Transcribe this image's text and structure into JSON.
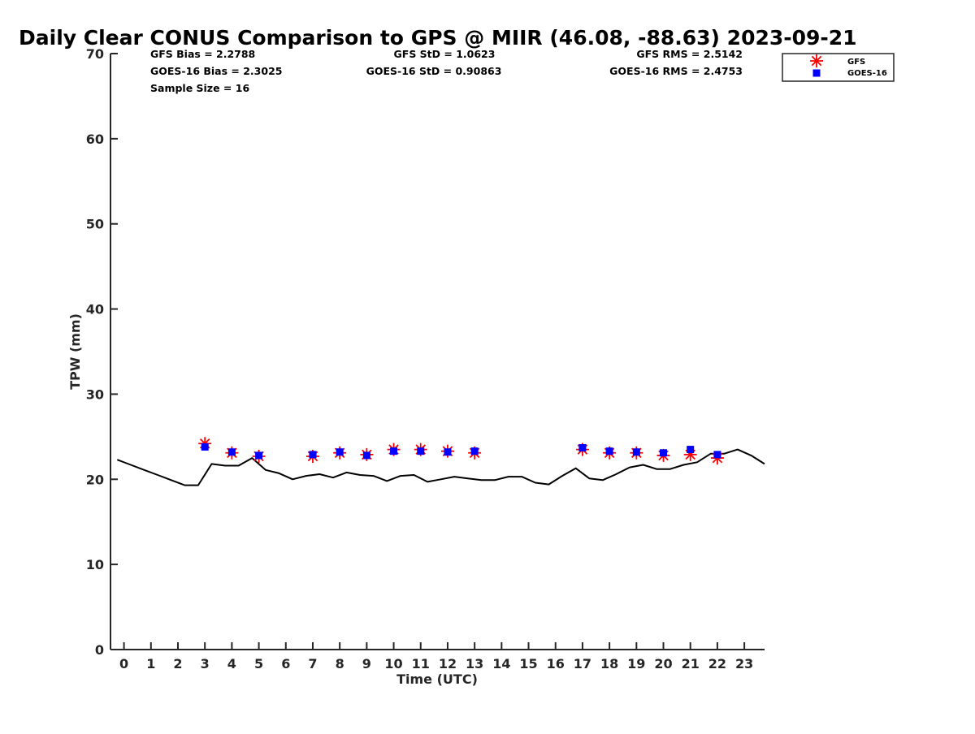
{
  "chart_data": {
    "type": "scatter",
    "title": "Daily Clear CONUS Comparison to GPS @ MIIR (46.08, -88.63) 2023-09-21",
    "xlabel": "Time (UTC)",
    "ylabel": "TPW (mm)",
    "xlim": [
      -0.5,
      23.75
    ],
    "ylim": [
      0,
      70
    ],
    "x_ticks": [
      0,
      1,
      2,
      3,
      4,
      5,
      6,
      7,
      8,
      9,
      10,
      11,
      12,
      13,
      14,
      15,
      16,
      17,
      18,
      19,
      20,
      21,
      22,
      23
    ],
    "y_ticks": [
      0,
      10,
      20,
      30,
      40,
      50,
      60,
      70
    ],
    "grid": false,
    "legend_position": "top-right",
    "colors": {
      "gfs": "#ff0000",
      "goes16": "#0000ff",
      "gps": "#000000",
      "axis": "#262626"
    },
    "stats": {
      "gfs_bias": "GFS Bias = 2.2788",
      "goes_bias": "GOES-16 Bias = 2.3025",
      "sample_size": "Sample Size = 16",
      "gfs_std": "GFS StD = 1.0623",
      "goes_std": "GOES-16 StD = 0.90863",
      "gfs_rms": "GFS RMS = 2.5142",
      "goes_rms": "GOES-16 RMS = 2.4753"
    },
    "series": [
      {
        "name": "GFS",
        "marker": "asterisk",
        "x": [
          3,
          4,
          5,
          7,
          8,
          9,
          10,
          11,
          12,
          13,
          17,
          18,
          19,
          20,
          21,
          22
        ],
        "y": [
          24.2,
          23.1,
          22.7,
          22.7,
          23.1,
          22.9,
          23.5,
          23.5,
          23.3,
          23.1,
          23.5,
          23.1,
          23.1,
          22.8,
          22.9,
          22.5
        ]
      },
      {
        "name": "GOES-16",
        "marker": "square",
        "x": [
          3,
          4,
          5,
          7,
          8,
          9,
          10,
          11,
          12,
          13,
          17,
          18,
          19,
          20,
          21,
          22
        ],
        "y": [
          23.8,
          23.2,
          22.8,
          22.9,
          23.2,
          22.8,
          23.3,
          23.3,
          23.2,
          23.3,
          23.7,
          23.3,
          23.2,
          23.1,
          23.5,
          22.9
        ]
      },
      {
        "marker": "line",
        "x": [
          -0.25,
          0.25,
          0.75,
          1.25,
          1.75,
          2.25,
          2.75,
          3.25,
          3.75,
          4.25,
          4.75,
          5.25,
          5.75,
          6.25,
          6.75,
          7.25,
          7.75,
          8.25,
          8.75,
          9.25,
          9.75,
          10.25,
          10.75,
          11.25,
          11.75,
          12.25,
          12.75,
          13.25,
          13.75,
          14.25,
          14.75,
          15.25,
          15.75,
          16.25,
          16.75,
          17.25,
          17.75,
          18.25,
          18.75,
          19.25,
          19.75,
          20.25,
          20.75,
          21.25,
          21.75,
          22.25,
          22.75,
          23.25,
          23.75
        ],
        "y": [
          22.3,
          21.7,
          21.1,
          20.5,
          19.9,
          19.3,
          19.3,
          21.8,
          21.6,
          21.6,
          22.5,
          21.1,
          20.7,
          20.0,
          20.4,
          20.6,
          20.2,
          20.8,
          20.5,
          20.4,
          19.8,
          20.4,
          20.5,
          19.7,
          20.0,
          20.3,
          20.1,
          19.9,
          19.9,
          20.3,
          20.3,
          19.6,
          19.4,
          20.4,
          21.3,
          20.1,
          19.9,
          20.6,
          21.4,
          21.7,
          21.2,
          21.2,
          21.7,
          22.0,
          23.0,
          23.0,
          23.5,
          22.8,
          21.8
        ]
      }
    ]
  }
}
